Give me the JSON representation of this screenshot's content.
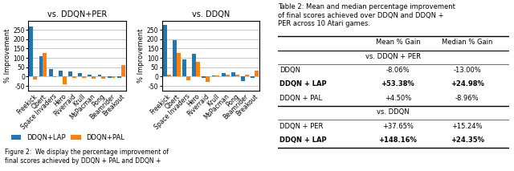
{
  "chart_data": [
    {
      "type": "bar",
      "title": "vs. DDQN+PER",
      "categories": [
        "Freekick",
        "Qbert",
        "Space Invaders",
        "Hero",
        "Riverraid",
        "Krull",
        "MsPacman",
        "Pong",
        "Beamrider",
        "Breakout"
      ],
      "series": [
        {
          "name": "DDQN+LAP",
          "values": [
            270,
            108,
            40,
            30,
            28,
            18,
            12,
            10,
            -5,
            -5
          ]
        },
        {
          "name": "DDQN+PAL",
          "values": [
            -15,
            125,
            -3,
            -40,
            -5,
            -8,
            -10,
            -10,
            -5,
            60
          ]
        }
      ],
      "y_label": "% Improvement",
      "ylim": [
        -75,
        300
      ],
      "yticks": [
        -50,
        0,
        50,
        100,
        150,
        200,
        250
      ],
      "grid": true,
      "legend": "lower left",
      "annotations": [
        "Figure 2:  We display the percentage improvement of\nfinal scores achieved by DDQN + PAL and DDQN +"
      ]
    },
    {
      "type": "bar",
      "title": "vs. DDQN",
      "categories": [
        "Freekick",
        "Qbert",
        "Space Invaders",
        "Hero",
        "Riverraid",
        "Krull",
        "MsPacman",
        "Pong",
        "Beamrider",
        "Breakout"
      ],
      "series": [
        {
          "name": "DDQN+LAP",
          "values": [
            275,
            195,
            93,
            120,
            -5,
            5,
            18,
            25,
            -25,
            -5
          ]
        },
        {
          "name": "DDQN+PAL",
          "values": [
            10,
            125,
            -20,
            80,
            -30,
            5,
            12,
            12,
            10,
            30
          ]
        }
      ],
      "y_label": "% Improvement",
      "ylim": [
        -75,
        300
      ],
      "yticks": [
        -50,
        0,
        50,
        100,
        150,
        200,
        250
      ],
      "grid": true
    },
    {
      "type": "table",
      "title": "Table 2: Mean and median percentage improvement\nof final scores achieved over DDQN and DDQN +\nPER across 10 Atari games.",
      "columns": [
        "Mean % Gain",
        "Median % Gain"
      ],
      "groups": [
        {
          "name": "vs. DDQN + PER",
          "rows": [
            {
              "name": "DDQN",
              "values": [
                -8.06,
                -13.0
              ],
              "value_labels": [
                "-8.06%",
                "-13.00%"
              ]
            },
            {
              "name": "DDQN + LAP",
              "values": [
                53.38,
                24.98
              ],
              "value_labels": [
                "+53.38%",
                "+24.98%"
              ]
            },
            {
              "name": "DDQN + PAL",
              "values": [
                4.5,
                -8.96
              ],
              "value_labels": [
                "+4.50%",
                "-8.96%"
              ]
            }
          ]
        },
        {
          "name": "vs. DDQN",
          "rows": [
            {
              "name": "DDQN + PER",
              "values": [
                37.65,
                15.24
              ],
              "value_labels": [
                "+37.65%",
                "+15.24%"
              ]
            },
            {
              "name": "DDQN + LAP",
              "values": [
                148.16,
                24.35
              ],
              "value_labels": [
                "+148.16%",
                "+24.35%"
              ]
            }
          ]
        }
      ]
    }
  ]
}
